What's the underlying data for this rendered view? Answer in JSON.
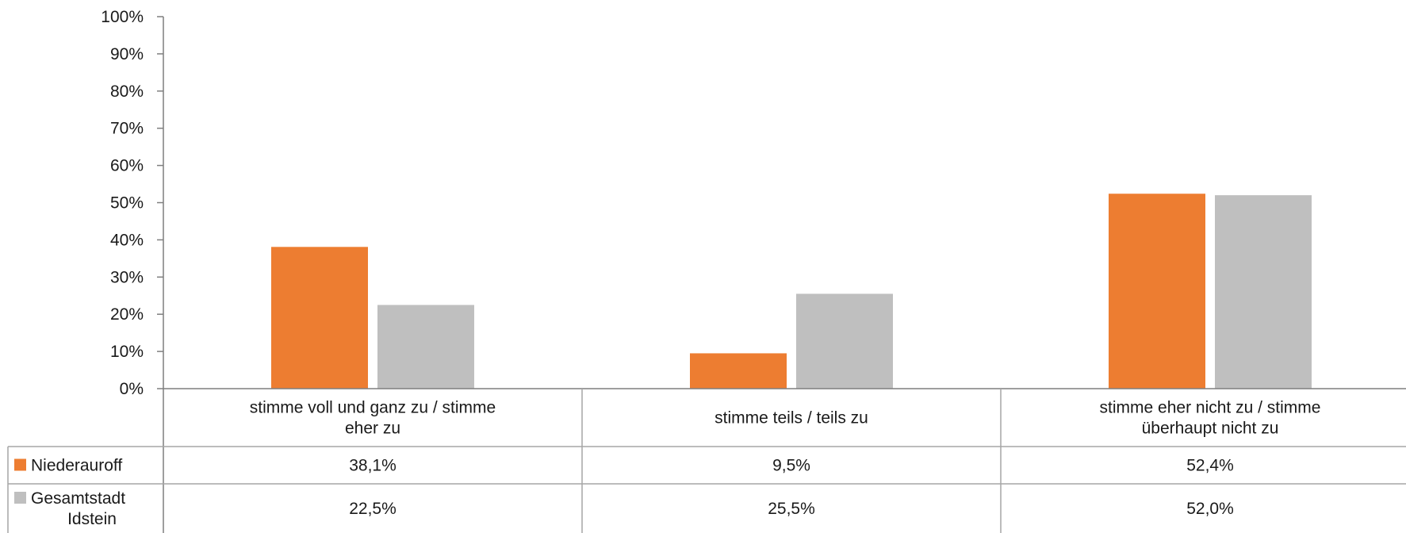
{
  "chart_data": {
    "type": "bar",
    "categories": [
      [
        "stimme voll und ganz zu / stimme",
        "eher zu"
      ],
      [
        "stimme teils / teils zu"
      ],
      [
        "stimme eher nicht zu / stimme",
        "überhaupt nicht zu"
      ]
    ],
    "series": [
      {
        "name_lines": [
          "Niederauroff"
        ],
        "color": "#ED7D31",
        "values": [
          38.1,
          9.5,
          52.4
        ],
        "labels": [
          "38,1%",
          "9,5%",
          "52,4%"
        ]
      },
      {
        "name_lines": [
          "Gesamtstadt",
          "Idstein"
        ],
        "color": "#BFBFBF",
        "values": [
          22.5,
          25.5,
          52.0
        ],
        "labels": [
          "22,5%",
          "25,5%",
          "52,0%"
        ]
      }
    ],
    "ylim": [
      0,
      100
    ],
    "yticks": [
      "0%",
      "10%",
      "20%",
      "30%",
      "40%",
      "50%",
      "60%",
      "70%",
      "80%",
      "90%",
      "100%"
    ],
    "grid": false,
    "legend": "data-table"
  }
}
